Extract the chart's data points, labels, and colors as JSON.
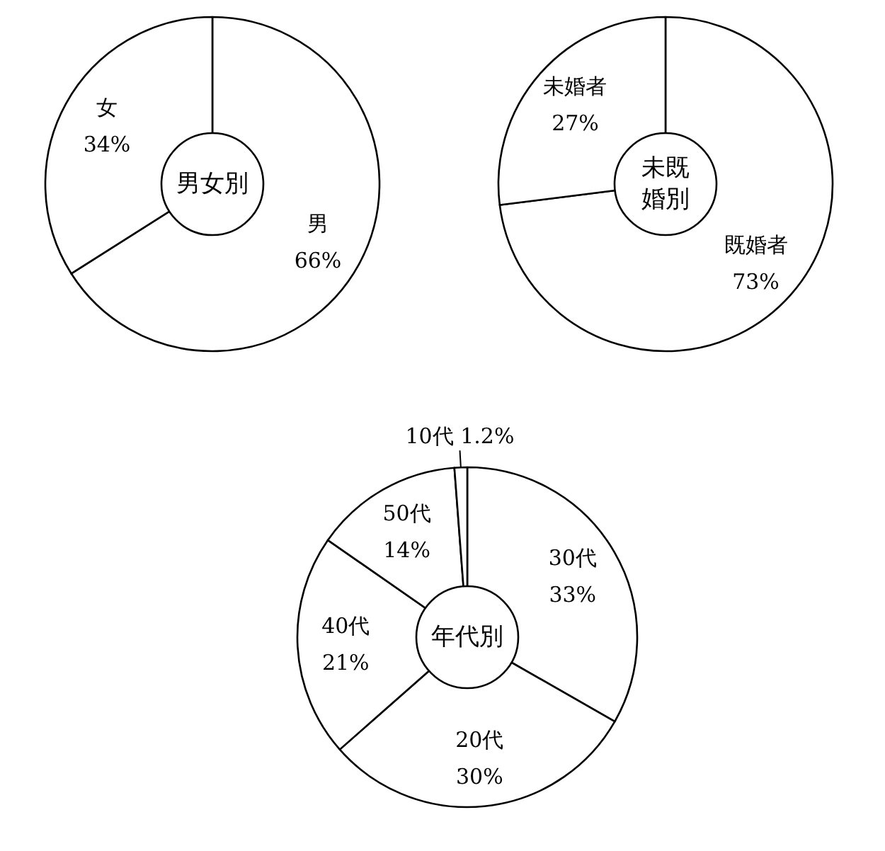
{
  "chart_data": [
    {
      "type": "donut",
      "title": "男女別",
      "categories": [
        "男",
        "女"
      ],
      "values": [
        66,
        34
      ],
      "value_labels": [
        "66%",
        "34%"
      ],
      "colors": [
        "#ffffff",
        "#ffffff"
      ]
    },
    {
      "type": "donut",
      "title": "未既婚別",
      "categories": [
        "既婚者",
        "未婚者"
      ],
      "values": [
        73,
        27
      ],
      "value_labels": [
        "73%",
        "27%"
      ],
      "colors": [
        "#ffffff",
        "#ffffff"
      ]
    },
    {
      "type": "donut",
      "title": "年代別",
      "categories": [
        "30代",
        "20代",
        "40代",
        "50代",
        "10代"
      ],
      "values": [
        33,
        30,
        21,
        14,
        1.2
      ],
      "value_labels": [
        "33%",
        "30%",
        "21%",
        "14%",
        "1.2%"
      ],
      "colors": [
        "#ffffff",
        "#ffffff",
        "#ffffff",
        "#ffffff",
        "#ffffff"
      ]
    }
  ]
}
